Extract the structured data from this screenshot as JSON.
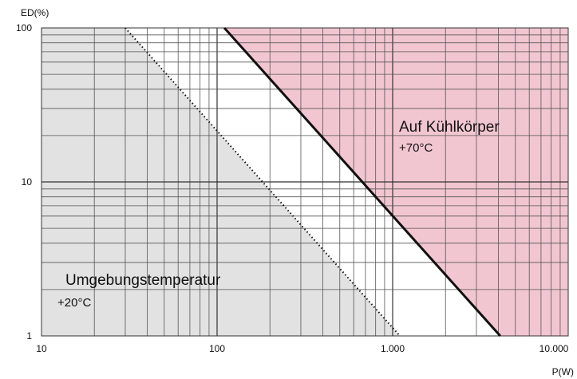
{
  "chart_data": {
    "type": "line",
    "xlabel": "P(W)",
    "ylabel": "ED(%)",
    "x_scale": "log",
    "y_scale": "log",
    "xlim": [
      10,
      10000
    ],
    "ylim": [
      1,
      100
    ],
    "x_ticks": [
      {
        "value": 10,
        "label": "10"
      },
      {
        "value": 100,
        "label": "100"
      },
      {
        "value": 1000,
        "label": "1.000"
      },
      {
        "value": 10000,
        "label": "10.000"
      }
    ],
    "y_ticks": [
      {
        "value": 1,
        "label": "1"
      },
      {
        "value": 10,
        "label": "10"
      },
      {
        "value": 100,
        "label": "100"
      }
    ],
    "grid": true,
    "series": [
      {
        "name": "Auf Kühlkörper +70°C",
        "style": "solid",
        "color": "#111111",
        "x": [
          110,
          4100
        ],
        "y": [
          100,
          1
        ]
      },
      {
        "name": "Umgebungstemperatur +20°C",
        "style": "dotted",
        "color": "#111111",
        "x": [
          30,
          1100
        ],
        "y": [
          100,
          1
        ]
      }
    ],
    "regions": [
      {
        "label": "Auf Kühlkörper",
        "sublabel": "+70°C",
        "color": "#f2c6d0",
        "side": "above solid line"
      },
      {
        "label": "Umgebungstemperatur",
        "sublabel": "+20°C",
        "color": "#e2e2e2",
        "side": "below dotted line"
      }
    ]
  }
}
